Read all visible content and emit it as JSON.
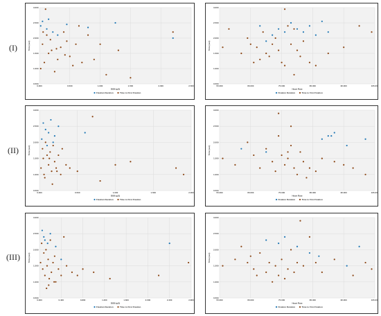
{
  "row_labels": [
    "(I)",
    "(II)",
    "(III)"
  ],
  "colors": {
    "series1": "#1f77b4",
    "series2": "#8b4513"
  },
  "chart_data": [
    {
      "type": "scatter",
      "id": "I-left",
      "xlabel": "DOB (μS)",
      "ylabel": "Time (sec)",
      "xticks": [
        "0.000",
        "0.500",
        "1.000",
        "1.500",
        "2.000",
        "2.500"
      ],
      "yticks": [
        "0.500",
        "1.000",
        "1.500",
        "2.000",
        "2.500",
        "3.000"
      ],
      "xlim": [
        0,
        2.5
      ],
      "ylim": [
        0.5,
        3.0
      ],
      "series": [
        {
          "name": "Fixation Duration",
          "x": [
            0.05,
            0.12,
            0.22,
            0.3,
            0.45,
            0.8,
            1.25,
            2.2,
            0.02,
            0.15
          ],
          "y": [
            2.55,
            2.3,
            2.2,
            2.1,
            2.45,
            2.35,
            2.5,
            2.0,
            2.4,
            2.62
          ]
        },
        {
          "name": "Time to First Fixation",
          "x": [
            0.02,
            0.05,
            0.08,
            0.1,
            0.12,
            0.15,
            0.2,
            0.25,
            0.3,
            0.35,
            0.4,
            0.45,
            0.5,
            0.55,
            0.6,
            0.65,
            0.7,
            0.8,
            0.9,
            1.0,
            1.1,
            1.3,
            1.5,
            2.2,
            0.06,
            0.18,
            0.28,
            0.42
          ],
          "y": [
            1.0,
            1.8,
            1.2,
            2.95,
            2.1,
            1.5,
            1.6,
            0.9,
            1.3,
            1.7,
            2.2,
            1.9,
            1.4,
            1.1,
            1.8,
            2.4,
            1.2,
            2.1,
            1.3,
            1.8,
            0.8,
            1.6,
            0.7,
            2.2,
            2.2,
            1.95,
            1.65,
            1.45
          ]
        }
      ]
    },
    {
      "type": "scatter",
      "id": "I-right",
      "xlabel": "Heart Rate",
      "ylabel": "Time (sec)",
      "xticks": [
        "55.000",
        "65.000",
        "75.000",
        "85.000",
        "95.000",
        "105.000"
      ],
      "yticks": [
        "0.500",
        "1.000",
        "1.500",
        "2.000",
        "2.500",
        "3.000"
      ],
      "xlim": [
        55,
        105
      ],
      "ylim": [
        0.5,
        3.0
      ],
      "series": [
        {
          "name": "Fixation Duration",
          "x": [
            68,
            72,
            74,
            76,
            78,
            80,
            82,
            84,
            86,
            88,
            90,
            70
          ],
          "y": [
            2.4,
            2.1,
            2.3,
            2.2,
            2.5,
            2.3,
            2.2,
            2.4,
            2.1,
            2.55,
            2.2,
            1.9
          ]
        },
        {
          "name": "Time to First Fixation",
          "x": [
            56,
            58,
            62,
            64,
            65,
            66,
            67,
            68,
            69,
            70,
            71,
            72,
            73,
            74,
            75,
            76,
            77,
            78,
            79,
            80,
            81,
            82,
            84,
            86,
            90,
            95,
            100,
            104,
            76,
            79
          ],
          "y": [
            1.7,
            2.3,
            1.5,
            2.0,
            1.8,
            1.2,
            1.7,
            1.3,
            2.2,
            1.5,
            1.4,
            1.8,
            2.0,
            1.6,
            1.2,
            1.1,
            2.4,
            1.8,
            2.3,
            1.6,
            1.4,
            1.9,
            1.2,
            1.1,
            1.5,
            1.7,
            2.4,
            2.2,
            2.95,
            0.8
          ]
        }
      ]
    },
    {
      "type": "scatter",
      "id": "II-left",
      "xlabel": "DOB (μS)",
      "ylabel": "Time (sec)",
      "xticks": [
        "0.000",
        "0.500",
        "1.000",
        "1.500",
        "2.000"
      ],
      "yticks": [
        "0.500",
        "1.000",
        "1.500",
        "2.000",
        "2.500",
        "3.000"
      ],
      "xlim": [
        0,
        2.0
      ],
      "ylim": [
        0.5,
        3.0
      ],
      "series": [
        {
          "name": "Fixation Duration",
          "x": [
            0.05,
            0.08,
            0.12,
            0.15,
            0.2,
            0.25,
            0.6,
            0.03,
            0.18,
            0.1
          ],
          "y": [
            2.6,
            2.4,
            2.3,
            2.7,
            2.2,
            2.5,
            2.3,
            2.1,
            2.0,
            1.9
          ]
        },
        {
          "name": "Time to First Fixation",
          "x": [
            0.02,
            0.04,
            0.05,
            0.06,
            0.08,
            0.1,
            0.12,
            0.14,
            0.16,
            0.18,
            0.2,
            0.22,
            0.25,
            0.28,
            0.3,
            0.35,
            0.4,
            0.5,
            0.7,
            0.8,
            1.0,
            1.2,
            1.8,
            1.9,
            0.07,
            0.13,
            0.17,
            0.23
          ],
          "y": [
            1.2,
            1.8,
            1.5,
            1.0,
            2.0,
            1.6,
            1.3,
            1.7,
            1.1,
            1.9,
            1.4,
            1.2,
            1.6,
            1.0,
            1.8,
            1.3,
            1.2,
            1.1,
            2.8,
            0.8,
            1.3,
            1.4,
            1.2,
            1.0,
            0.9,
            1.5,
            0.7,
            1.1
          ]
        }
      ]
    },
    {
      "type": "scatter",
      "id": "II-right",
      "xlabel": "Heart Rate",
      "ylabel": "Time (sec)",
      "xticks": [
        "55.000",
        "65.000",
        "75.000",
        "85.000",
        "95.000",
        "105.000"
      ],
      "yticks": [
        "0.500",
        "1.000",
        "1.500",
        "2.000",
        "2.500",
        "3.000"
      ],
      "xlim": [
        55,
        105
      ],
      "ylim": [
        0.5,
        3.0
      ],
      "series": [
        {
          "name": "Fixation Duration",
          "x": [
            88,
            90,
            91,
            92,
            96,
            102,
            62,
            70
          ],
          "y": [
            2.1,
            2.2,
            2.2,
            2.3,
            1.9,
            2.1,
            1.8,
            1.7
          ]
        },
        {
          "name": "Time to First Fixation",
          "x": [
            56,
            60,
            64,
            66,
            68,
            70,
            72,
            73,
            74,
            75,
            76,
            77,
            78,
            79,
            80,
            81,
            82,
            84,
            86,
            88,
            92,
            95,
            98,
            102,
            74,
            78,
            83,
            77
          ],
          "y": [
            1.5,
            1.3,
            2.0,
            1.6,
            1.2,
            1.8,
            1.4,
            1.1,
            2.2,
            1.6,
            1.3,
            1.5,
            1.9,
            1.2,
            1.0,
            1.7,
            1.4,
            1.2,
            1.1,
            1.5,
            1.4,
            1.3,
            1.2,
            1.0,
            2.9,
            2.5,
            0.9,
            1.7
          ]
        }
      ]
    },
    {
      "type": "scatter",
      "id": "III-left",
      "xlabel": "DOB (μS)",
      "ylabel": "Time (sec)",
      "xticks": [
        "0.000",
        "0.400",
        "0.800",
        "1.200",
        "1.600",
        "2.000",
        "2.400",
        "2.800"
      ],
      "yticks": [
        "0.500",
        "1.000",
        "1.500",
        "2.000",
        "2.500",
        "3.000"
      ],
      "xlim": [
        0,
        2.8
      ],
      "ylim": [
        0.5,
        3.0
      ],
      "series": [
        {
          "name": "Fixation Duration",
          "x": [
            0.05,
            0.1,
            0.15,
            0.2,
            0.3,
            0.4,
            2.4,
            0.08
          ],
          "y": [
            2.6,
            2.3,
            2.2,
            2.5,
            2.1,
            1.7,
            2.2,
            2.4
          ]
        },
        {
          "name": "Time to First Fixation",
          "x": [
            0.02,
            0.04,
            0.06,
            0.08,
            0.1,
            0.12,
            0.14,
            0.16,
            0.18,
            0.2,
            0.22,
            0.25,
            0.28,
            0.3,
            0.35,
            0.4,
            0.45,
            0.5,
            0.6,
            0.7,
            0.8,
            1.0,
            1.3,
            2.2,
            2.75,
            0.13,
            0.17,
            0.27
          ],
          "y": [
            1.6,
            2.2,
            1.4,
            1.9,
            1.2,
            2.0,
            1.5,
            1.7,
            1.1,
            2.3,
            1.3,
            1.6,
            1.8,
            1.0,
            1.4,
            1.2,
            2.4,
            1.5,
            1.3,
            1.2,
            1.4,
            1.3,
            1.1,
            1.2,
            1.6,
            0.8,
            0.9,
            1.0
          ]
        }
      ]
    },
    {
      "type": "scatter",
      "id": "III-right",
      "xlabel": "Heart Rate",
      "ylabel": "Time (sec)",
      "xticks": [
        "55.000",
        "65.000",
        "75.000",
        "85.000",
        "95.000",
        "105.000"
      ],
      "yticks": [
        "0.500",
        "1.000",
        "1.500",
        "2.000",
        "2.500",
        "3.000"
      ],
      "xlim": [
        55,
        105
      ],
      "ylim": [
        0.5,
        3.0
      ],
      "series": [
        {
          "name": "Fixation Duration",
          "x": [
            74,
            76,
            80,
            84,
            87,
            96,
            100,
            70
          ],
          "y": [
            2.2,
            2.4,
            2.1,
            1.9,
            1.8,
            1.5,
            2.1,
            2.3
          ]
        },
        {
          "name": "Time to First Fixation",
          "x": [
            56,
            60,
            62,
            64,
            65,
            66,
            67,
            68,
            70,
            71,
            72,
            73,
            74,
            75,
            76,
            77,
            78,
            79,
            80,
            81,
            82,
            84,
            86,
            88,
            92,
            98,
            102,
            104
          ],
          "y": [
            1.5,
            1.7,
            2.1,
            1.6,
            1.8,
            1.4,
            1.2,
            1.9,
            1.3,
            1.6,
            1.0,
            1.5,
            1.2,
            1.7,
            1.1,
            1.4,
            2.0,
            1.3,
            1.6,
            2.9,
            1.5,
            2.4,
            1.6,
            1.3,
            1.7,
            1.2,
            1.6,
            1.4
          ]
        }
      ]
    }
  ]
}
